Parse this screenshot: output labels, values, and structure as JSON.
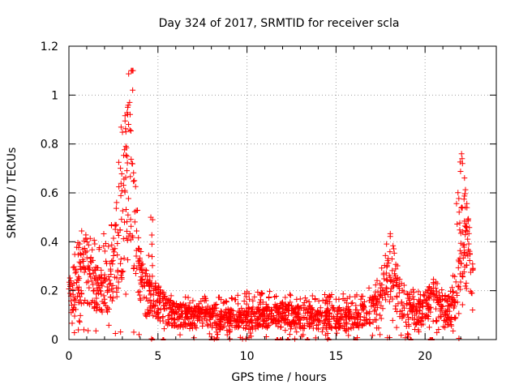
{
  "chart_data": {
    "type": "scatter",
    "title": "Day 324 of 2017, SRMTID for receiver scla",
    "xlabel": "GPS time / hours",
    "ylabel": "SRMTID / TECUs",
    "xlim": [
      0,
      24
    ],
    "ylim": [
      0,
      1.2
    ],
    "x_ticks": [
      0,
      5,
      10,
      15,
      20
    ],
    "y_ticks": [
      0,
      0.2,
      0.4,
      0.6,
      0.8,
      1.0,
      1.2
    ],
    "x_tick_labels": [
      "0",
      "5",
      "10",
      "15",
      "20"
    ],
    "y_tick_labels": [
      "0",
      "0.2",
      "0.4",
      "0.6",
      "0.8",
      "1",
      "1.2"
    ],
    "grid": true,
    "marker": "+",
    "color": "#ff0000",
    "series": [
      {
        "name": "SRMTID",
        "envelope": {
          "x": [
            0,
            0.2,
            0.5,
            0.8,
            1.0,
            1.3,
            1.6,
            1.9,
            2.2,
            2.5,
            2.8,
            3.0,
            3.2,
            3.4,
            3.6,
            3.8,
            4.0,
            4.3,
            4.6,
            4.8,
            5.0,
            5.5,
            6,
            7,
            8,
            9,
            10,
            11,
            12,
            13,
            14,
            15,
            16,
            16.5,
            17,
            17.5,
            17.8,
            18.0,
            18.3,
            18.6,
            19,
            19.5,
            20,
            20.5,
            21,
            21.5,
            21.8,
            22.0,
            22.2,
            22.5,
            22.7
          ],
          "center": [
            0.17,
            0.2,
            0.24,
            0.26,
            0.3,
            0.22,
            0.2,
            0.18,
            0.22,
            0.3,
            0.35,
            0.5,
            0.6,
            0.7,
            0.6,
            0.42,
            0.25,
            0.2,
            0.15,
            0.18,
            0.15,
            0.12,
            0.1,
            0.09,
            0.09,
            0.08,
            0.08,
            0.09,
            0.1,
            0.09,
            0.08,
            0.09,
            0.08,
            0.1,
            0.12,
            0.15,
            0.22,
            0.3,
            0.25,
            0.15,
            0.12,
            0.1,
            0.13,
            0.15,
            0.12,
            0.12,
            0.2,
            0.35,
            0.45,
            0.3,
            0.2
          ],
          "peak": [
            0.26,
            0.32,
            0.4,
            0.5,
            0.48,
            0.45,
            0.42,
            0.44,
            0.46,
            0.56,
            0.8,
            0.95,
            1.1,
            1.1,
            0.7,
            0.52,
            0.32,
            0.3,
            0.5,
            0.25,
            0.22,
            0.18,
            0.18,
            0.17,
            0.18,
            0.17,
            0.2,
            0.2,
            0.19,
            0.18,
            0.18,
            0.2,
            0.18,
            0.19,
            0.22,
            0.3,
            0.4,
            0.38,
            0.3,
            0.28,
            0.22,
            0.2,
            0.22,
            0.25,
            0.2,
            0.2,
            0.62,
            0.76,
            0.6,
            0.45,
            0.3
          ]
        },
        "zero_points_x": [
          4.7,
          5.3,
          8.0,
          8.3,
          11.7,
          11.9,
          12.3,
          13.4,
          14.6,
          16.1,
          19.2,
          20.3,
          20.4
        ]
      }
    ]
  }
}
